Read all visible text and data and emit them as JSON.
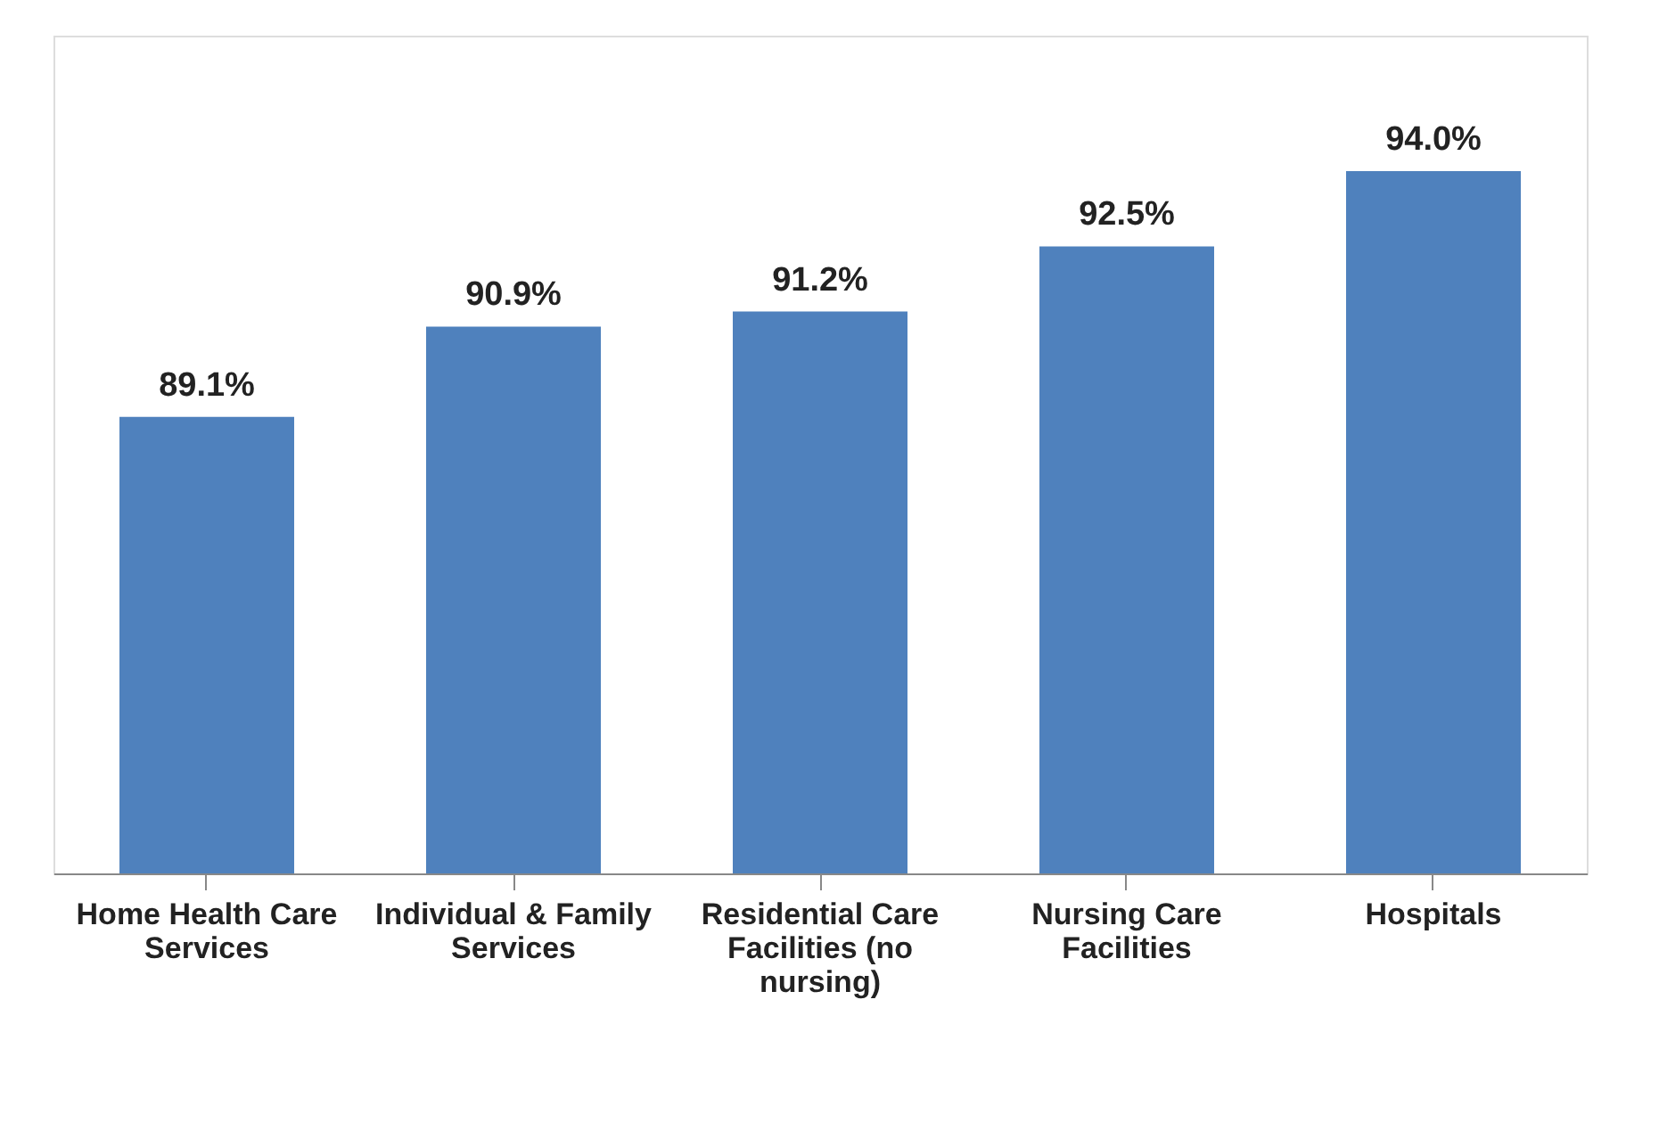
{
  "chart_data": {
    "type": "bar",
    "categories": [
      "Home Health Care Services",
      "Individual & Family Services",
      "Residential Care Facilities (no nursing)",
      "Nursing Care Facilities",
      "Hospitals"
    ],
    "values": [
      89.1,
      90.9,
      91.2,
      92.5,
      94.0
    ],
    "value_labels": [
      "89.1%",
      "90.9%",
      "91.2%",
      "92.5%",
      "94.0%"
    ],
    "color": "#4f81bd",
    "ylim": [
      80,
      96.7
    ],
    "tick_labels": "x",
    "grid": false
  }
}
